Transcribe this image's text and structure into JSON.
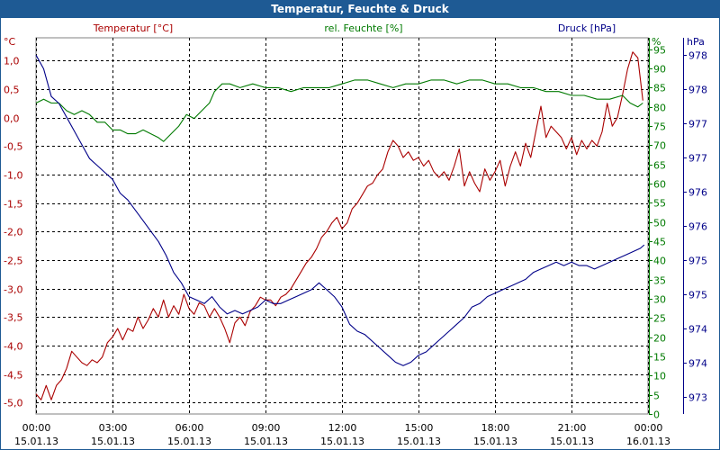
{
  "title": "Temperatur, Feuchte & Druck",
  "colors": {
    "title_bg": "#1e5a94",
    "temperature": "#aa0000",
    "humidity": "#007a00",
    "pressure": "#000088",
    "grid": "#000000"
  },
  "headers": {
    "temperature": "Temperatur [°C]",
    "humidity": "rel. Feuchte [%]",
    "pressure": "Druck [hPa]"
  },
  "units": {
    "temperature": "°C",
    "humidity": "%",
    "pressure": "hPa"
  },
  "chart_data": {
    "type": "line",
    "x_hours": [
      0,
      24
    ],
    "x_tick_times": [
      "00:00",
      "03:00",
      "06:00",
      "09:00",
      "12:00",
      "15:00",
      "18:00",
      "21:00",
      "00:00"
    ],
    "x_tick_dates": [
      "15.01.13",
      "15.01.13",
      "15.01.13",
      "15.01.13",
      "15.01.13",
      "15.01.13",
      "15.01.13",
      "15.01.13",
      "16.01.13"
    ],
    "grid": true,
    "axes": {
      "temperature": {
        "side": "left",
        "ylim": [
          -5.2,
          1.4
        ],
        "ticks": [
          "1,0",
          "0,5",
          "0,0",
          "-0,5",
          "-1,0",
          "-1,5",
          "-2,0",
          "-2,5",
          "-3,0",
          "-3,5",
          "-4,0",
          "-4,5",
          "-5,0"
        ]
      },
      "humidity": {
        "side": "right",
        "ylim": [
          0,
          98
        ],
        "ticks": [
          "95",
          "90",
          "85",
          "80",
          "75",
          "70",
          "65",
          "60",
          "55",
          "50",
          "45",
          "40",
          "35",
          "30",
          "25",
          "20",
          "15",
          "10",
          "5",
          "0"
        ]
      },
      "pressure": {
        "side": "right",
        "ylim": [
          972.8,
          978.25
        ],
        "ticks": [
          "978",
          "978",
          "977",
          "977",
          "976",
          "976",
          "975",
          "975",
          "974",
          "974",
          "973"
        ]
      }
    },
    "series": [
      {
        "name": "Temperatur [°C]",
        "axis": "temperature",
        "points": [
          [
            0,
            -4.85
          ],
          [
            0.2,
            -4.95
          ],
          [
            0.4,
            -4.7
          ],
          [
            0.6,
            -4.95
          ],
          [
            0.8,
            -4.7
          ],
          [
            1.0,
            -4.6
          ],
          [
            1.2,
            -4.4
          ],
          [
            1.4,
            -4.1
          ],
          [
            1.6,
            -4.2
          ],
          [
            1.8,
            -4.3
          ],
          [
            2.0,
            -4.35
          ],
          [
            2.2,
            -4.25
          ],
          [
            2.4,
            -4.3
          ],
          [
            2.6,
            -4.2
          ],
          [
            2.8,
            -3.95
          ],
          [
            3.0,
            -3.85
          ],
          [
            3.2,
            -3.7
          ],
          [
            3.4,
            -3.9
          ],
          [
            3.6,
            -3.7
          ],
          [
            3.8,
            -3.75
          ],
          [
            4.0,
            -3.5
          ],
          [
            4.2,
            -3.7
          ],
          [
            4.4,
            -3.55
          ],
          [
            4.6,
            -3.35
          ],
          [
            4.8,
            -3.5
          ],
          [
            5.0,
            -3.2
          ],
          [
            5.2,
            -3.5
          ],
          [
            5.4,
            -3.3
          ],
          [
            5.6,
            -3.45
          ],
          [
            5.8,
            -3.1
          ],
          [
            6.0,
            -3.35
          ],
          [
            6.2,
            -3.45
          ],
          [
            6.4,
            -3.25
          ],
          [
            6.6,
            -3.3
          ],
          [
            6.8,
            -3.5
          ],
          [
            7.0,
            -3.35
          ],
          [
            7.2,
            -3.5
          ],
          [
            7.4,
            -3.7
          ],
          [
            7.6,
            -3.95
          ],
          [
            7.8,
            -3.6
          ],
          [
            8.0,
            -3.5
          ],
          [
            8.2,
            -3.65
          ],
          [
            8.4,
            -3.4
          ],
          [
            8.6,
            -3.3
          ],
          [
            8.8,
            -3.15
          ],
          [
            9.0,
            -3.2
          ],
          [
            9.2,
            -3.2
          ],
          [
            9.4,
            -3.3
          ],
          [
            9.6,
            -3.15
          ],
          [
            9.8,
            -3.1
          ],
          [
            10.0,
            -3.0
          ],
          [
            10.2,
            -2.85
          ],
          [
            10.4,
            -2.7
          ],
          [
            10.6,
            -2.55
          ],
          [
            10.8,
            -2.45
          ],
          [
            11.0,
            -2.3
          ],
          [
            11.2,
            -2.1
          ],
          [
            11.4,
            -2.0
          ],
          [
            11.6,
            -1.85
          ],
          [
            11.8,
            -1.75
          ],
          [
            12.0,
            -1.95
          ],
          [
            12.2,
            -1.85
          ],
          [
            12.4,
            -1.6
          ],
          [
            12.6,
            -1.5
          ],
          [
            12.8,
            -1.35
          ],
          [
            13.0,
            -1.2
          ],
          [
            13.2,
            -1.15
          ],
          [
            13.4,
            -1.0
          ],
          [
            13.6,
            -0.9
          ],
          [
            13.8,
            -0.6
          ],
          [
            14.0,
            -0.4
          ],
          [
            14.2,
            -0.5
          ],
          [
            14.4,
            -0.7
          ],
          [
            14.6,
            -0.6
          ],
          [
            14.8,
            -0.75
          ],
          [
            15.0,
            -0.7
          ],
          [
            15.2,
            -0.85
          ],
          [
            15.4,
            -0.75
          ],
          [
            15.6,
            -0.95
          ],
          [
            15.8,
            -1.05
          ],
          [
            16.0,
            -0.95
          ],
          [
            16.2,
            -1.1
          ],
          [
            16.4,
            -0.85
          ],
          [
            16.6,
            -0.55
          ],
          [
            16.8,
            -1.2
          ],
          [
            17.0,
            -0.95
          ],
          [
            17.2,
            -1.15
          ],
          [
            17.4,
            -1.3
          ],
          [
            17.6,
            -0.9
          ],
          [
            17.8,
            -1.1
          ],
          [
            18.0,
            -0.95
          ],
          [
            18.2,
            -0.75
          ],
          [
            18.4,
            -1.2
          ],
          [
            18.6,
            -0.85
          ],
          [
            18.8,
            -0.6
          ],
          [
            19.0,
            -0.85
          ],
          [
            19.2,
            -0.45
          ],
          [
            19.4,
            -0.7
          ],
          [
            19.6,
            -0.25
          ],
          [
            19.8,
            0.2
          ],
          [
            20.0,
            -0.35
          ],
          [
            20.2,
            -0.15
          ],
          [
            20.4,
            -0.25
          ],
          [
            20.6,
            -0.35
          ],
          [
            20.8,
            -0.55
          ],
          [
            21.0,
            -0.35
          ],
          [
            21.2,
            -0.65
          ],
          [
            21.4,
            -0.4
          ],
          [
            21.6,
            -0.55
          ],
          [
            21.8,
            -0.4
          ],
          [
            22.0,
            -0.5
          ],
          [
            22.2,
            -0.25
          ],
          [
            22.4,
            0.25
          ],
          [
            22.6,
            -0.15
          ],
          [
            22.8,
            0.0
          ],
          [
            23.0,
            0.4
          ],
          [
            23.2,
            0.85
          ],
          [
            23.4,
            1.15
          ],
          [
            23.6,
            1.05
          ],
          [
            23.8,
            0.3
          ]
        ]
      },
      {
        "name": "rel. Feuchte [%]",
        "axis": "humidity",
        "points": [
          [
            0,
            81
          ],
          [
            0.3,
            82
          ],
          [
            0.6,
            81
          ],
          [
            0.9,
            81
          ],
          [
            1.2,
            79
          ],
          [
            1.5,
            78
          ],
          [
            1.8,
            79
          ],
          [
            2.1,
            78
          ],
          [
            2.4,
            76
          ],
          [
            2.7,
            76
          ],
          [
            3.0,
            74
          ],
          [
            3.3,
            74
          ],
          [
            3.6,
            73
          ],
          [
            3.9,
            73
          ],
          [
            4.2,
            74
          ],
          [
            4.5,
            73
          ],
          [
            4.8,
            72
          ],
          [
            5.0,
            71
          ],
          [
            5.3,
            73
          ],
          [
            5.6,
            75
          ],
          [
            5.9,
            78
          ],
          [
            6.2,
            77
          ],
          [
            6.5,
            79
          ],
          [
            6.8,
            81
          ],
          [
            7.0,
            84
          ],
          [
            7.3,
            86
          ],
          [
            7.6,
            86
          ],
          [
            8.0,
            85
          ],
          [
            8.5,
            86
          ],
          [
            9.0,
            85
          ],
          [
            9.5,
            85
          ],
          [
            10.0,
            84
          ],
          [
            10.5,
            85
          ],
          [
            11.0,
            85
          ],
          [
            11.5,
            85
          ],
          [
            12.0,
            86
          ],
          [
            12.5,
            87
          ],
          [
            13.0,
            87
          ],
          [
            13.5,
            86
          ],
          [
            14.0,
            85
          ],
          [
            14.5,
            86
          ],
          [
            15.0,
            86
          ],
          [
            15.5,
            87
          ],
          [
            16.0,
            87
          ],
          [
            16.5,
            86
          ],
          [
            17.0,
            87
          ],
          [
            17.5,
            87
          ],
          [
            18.0,
            86
          ],
          [
            18.5,
            86
          ],
          [
            19.0,
            85
          ],
          [
            19.5,
            85
          ],
          [
            20.0,
            84
          ],
          [
            20.5,
            84
          ],
          [
            21.0,
            83
          ],
          [
            21.5,
            83
          ],
          [
            22.0,
            82
          ],
          [
            22.5,
            82
          ],
          [
            23.0,
            83
          ],
          [
            23.3,
            81
          ],
          [
            23.6,
            80
          ],
          [
            23.8,
            81
          ]
        ]
      },
      {
        "name": "Druck [hPa]",
        "axis": "pressure",
        "points": [
          [
            0,
            978.0
          ],
          [
            0.3,
            977.8
          ],
          [
            0.6,
            977.4
          ],
          [
            0.9,
            977.3
          ],
          [
            1.2,
            977.1
          ],
          [
            1.5,
            976.9
          ],
          [
            1.8,
            976.7
          ],
          [
            2.1,
            976.5
          ],
          [
            2.4,
            976.4
          ],
          [
            2.7,
            976.3
          ],
          [
            3.0,
            976.2
          ],
          [
            3.3,
            976.0
          ],
          [
            3.6,
            975.9
          ],
          [
            3.9,
            975.75
          ],
          [
            4.2,
            975.6
          ],
          [
            4.5,
            975.45
          ],
          [
            4.8,
            975.3
          ],
          [
            5.1,
            975.1
          ],
          [
            5.4,
            974.85
          ],
          [
            5.7,
            974.7
          ],
          [
            6.0,
            974.5
          ],
          [
            6.3,
            974.45
          ],
          [
            6.6,
            974.4
          ],
          [
            6.9,
            974.5
          ],
          [
            7.2,
            974.35
          ],
          [
            7.5,
            974.25
          ],
          [
            7.8,
            974.3
          ],
          [
            8.1,
            974.25
          ],
          [
            8.4,
            974.3
          ],
          [
            8.7,
            974.35
          ],
          [
            9.0,
            974.45
          ],
          [
            9.3,
            974.4
          ],
          [
            9.6,
            974.4
          ],
          [
            9.9,
            974.45
          ],
          [
            10.2,
            974.5
          ],
          [
            10.5,
            974.55
          ],
          [
            10.8,
            974.6
          ],
          [
            11.1,
            974.7
          ],
          [
            11.4,
            974.6
          ],
          [
            11.7,
            974.5
          ],
          [
            12.0,
            974.35
          ],
          [
            12.3,
            974.1
          ],
          [
            12.6,
            974.0
          ],
          [
            12.9,
            973.95
          ],
          [
            13.2,
            973.85
          ],
          [
            13.5,
            973.75
          ],
          [
            13.8,
            973.65
          ],
          [
            14.1,
            973.55
          ],
          [
            14.4,
            973.5
          ],
          [
            14.7,
            973.55
          ],
          [
            15.0,
            973.65
          ],
          [
            15.3,
            973.7
          ],
          [
            15.6,
            973.8
          ],
          [
            15.9,
            973.9
          ],
          [
            16.2,
            974.0
          ],
          [
            16.5,
            974.1
          ],
          [
            16.8,
            974.2
          ],
          [
            17.1,
            974.35
          ],
          [
            17.4,
            974.4
          ],
          [
            17.7,
            974.5
          ],
          [
            18.0,
            974.55
          ],
          [
            18.3,
            974.6
          ],
          [
            18.6,
            974.65
          ],
          [
            18.9,
            974.7
          ],
          [
            19.2,
            974.75
          ],
          [
            19.5,
            974.85
          ],
          [
            19.8,
            974.9
          ],
          [
            20.1,
            974.95
          ],
          [
            20.4,
            975.0
          ],
          [
            20.7,
            974.95
          ],
          [
            21.0,
            975.0
          ],
          [
            21.3,
            974.95
          ],
          [
            21.6,
            974.95
          ],
          [
            21.9,
            974.9
          ],
          [
            22.2,
            974.95
          ],
          [
            22.5,
            975.0
          ],
          [
            22.8,
            975.05
          ],
          [
            23.1,
            975.1
          ],
          [
            23.4,
            975.15
          ],
          [
            23.7,
            975.2
          ],
          [
            23.85,
            975.25
          ]
        ]
      }
    ]
  }
}
